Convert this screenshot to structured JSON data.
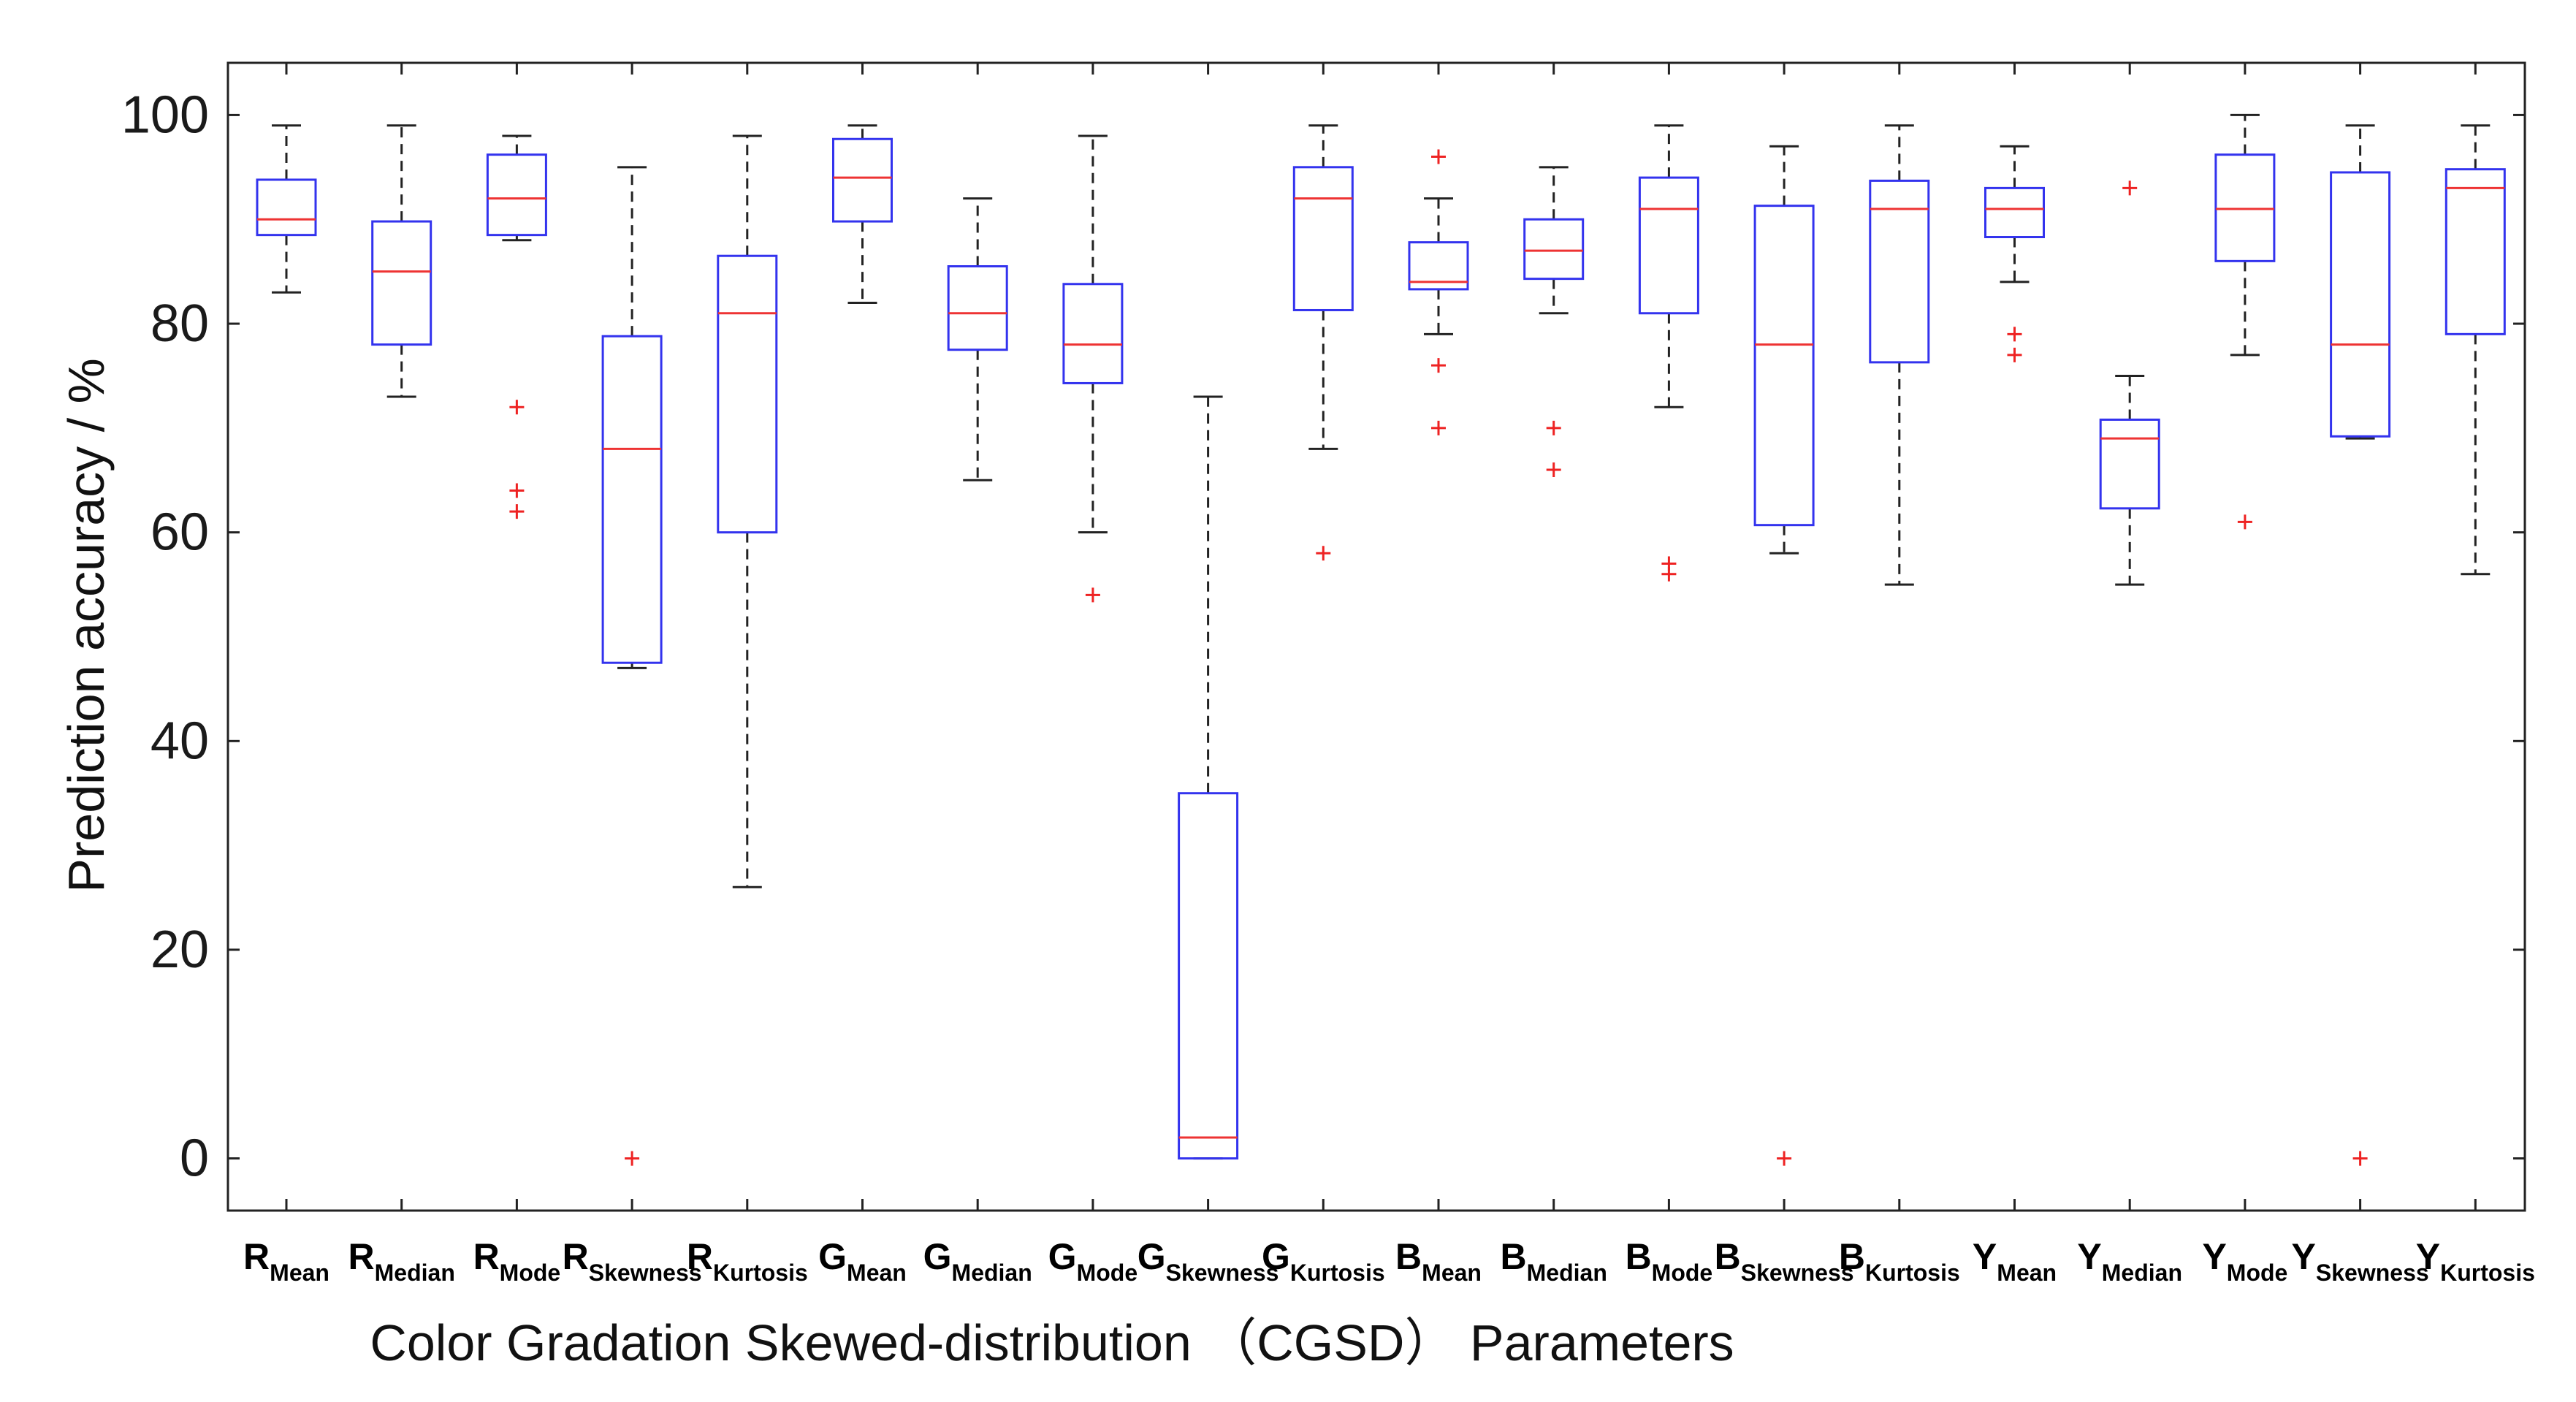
{
  "chart_data": {
    "type": "boxplot",
    "title": "",
    "xlabel": "Color Gradation Skewed-distribution （CGSD） Parameters",
    "ylabel": "Prediction accuracy / %",
    "ylim": [
      -5,
      105
    ],
    "yticks": [
      0,
      20,
      40,
      60,
      80,
      100
    ],
    "colors": {
      "box": "#3333ee",
      "median": "#ee3333",
      "whisker": "#222222",
      "outlier": "#ee2222",
      "axis": "#222222"
    },
    "categories": [
      {
        "base": "R",
        "sub": "Mean"
      },
      {
        "base": "R",
        "sub": "Median"
      },
      {
        "base": "R",
        "sub": "Mode"
      },
      {
        "base": "R",
        "sub": "Skewness"
      },
      {
        "base": "R",
        "sub": "Kurtosis"
      },
      {
        "base": "G",
        "sub": "Mean"
      },
      {
        "base": "G",
        "sub": "Median"
      },
      {
        "base": "G",
        "sub": "Mode"
      },
      {
        "base": "G",
        "sub": "Skewness"
      },
      {
        "base": "G",
        "sub": "Kurtosis"
      },
      {
        "base": "B",
        "sub": "Mean"
      },
      {
        "base": "B",
        "sub": "Median"
      },
      {
        "base": "B",
        "sub": "Mode"
      },
      {
        "base": "B",
        "sub": "Skewness"
      },
      {
        "base": "B",
        "sub": "Kurtosis"
      },
      {
        "base": "Y",
        "sub": "Mean"
      },
      {
        "base": "Y",
        "sub": "Median"
      },
      {
        "base": "Y",
        "sub": "Mode"
      },
      {
        "base": "Y",
        "sub": "Skewness"
      },
      {
        "base": "Y",
        "sub": "Kurtosis"
      }
    ],
    "boxes": [
      {
        "whisker_low": 83,
        "q1": 88.5,
        "median": 90,
        "q3": 93.8,
        "whisker_high": 99,
        "outliers": []
      },
      {
        "whisker_low": 73,
        "q1": 78,
        "median": 85,
        "q3": 89.8,
        "whisker_high": 99,
        "outliers": []
      },
      {
        "whisker_low": 88,
        "q1": 88.5,
        "median": 92,
        "q3": 96.2,
        "whisker_high": 98,
        "outliers": [
          72,
          64,
          62
        ]
      },
      {
        "whisker_low": 47,
        "q1": 47.5,
        "median": 68,
        "q3": 78.8,
        "whisker_high": 95,
        "outliers": [
          0
        ]
      },
      {
        "whisker_low": 26,
        "q1": 60,
        "median": 81,
        "q3": 86.5,
        "whisker_high": 98,
        "outliers": []
      },
      {
        "whisker_low": 82,
        "q1": 89.8,
        "median": 94,
        "q3": 97.7,
        "whisker_high": 99,
        "outliers": []
      },
      {
        "whisker_low": 65,
        "q1": 77.5,
        "median": 81,
        "q3": 85.5,
        "whisker_high": 92,
        "outliers": []
      },
      {
        "whisker_low": 60,
        "q1": 74.3,
        "median": 78,
        "q3": 83.8,
        "whisker_high": 98,
        "outliers": [
          54
        ]
      },
      {
        "whisker_low": 0,
        "q1": 0,
        "median": 2,
        "q3": 35,
        "whisker_high": 73,
        "outliers": []
      },
      {
        "whisker_low": 68,
        "q1": 81.3,
        "median": 92,
        "q3": 95,
        "whisker_high": 99,
        "outliers": [
          58
        ]
      },
      {
        "whisker_low": 79,
        "q1": 83.3,
        "median": 84,
        "q3": 87.8,
        "whisker_high": 92,
        "outliers": [
          96,
          76,
          70
        ]
      },
      {
        "whisker_low": 81,
        "q1": 84.3,
        "median": 87,
        "q3": 90,
        "whisker_high": 95,
        "outliers": [
          70,
          66
        ]
      },
      {
        "whisker_low": 72,
        "q1": 81,
        "median": 91,
        "q3": 94,
        "whisker_high": 99,
        "outliers": [
          57,
          56
        ]
      },
      {
        "whisker_low": 58,
        "q1": 60.7,
        "median": 78,
        "q3": 91.3,
        "whisker_high": 97,
        "outliers": [
          0
        ]
      },
      {
        "whisker_low": 55,
        "q1": 76.3,
        "median": 91,
        "q3": 93.7,
        "whisker_high": 99,
        "outliers": []
      },
      {
        "whisker_low": 84,
        "q1": 88.3,
        "median": 91,
        "q3": 93,
        "whisker_high": 97,
        "outliers": [
          79,
          77
        ]
      },
      {
        "whisker_low": 55,
        "q1": 62.3,
        "median": 69,
        "q3": 70.8,
        "whisker_high": 75,
        "outliers": [
          93
        ]
      },
      {
        "whisker_low": 77,
        "q1": 86,
        "median": 91,
        "q3": 96.2,
        "whisker_high": 100,
        "outliers": [
          61
        ]
      },
      {
        "whisker_low": 69,
        "q1": 69.2,
        "median": 78,
        "q3": 94.5,
        "whisker_high": 99,
        "outliers": [
          0
        ]
      },
      {
        "whisker_low": 56,
        "q1": 79,
        "median": 93,
        "q3": 94.8,
        "whisker_high": 99,
        "outliers": []
      }
    ]
  }
}
